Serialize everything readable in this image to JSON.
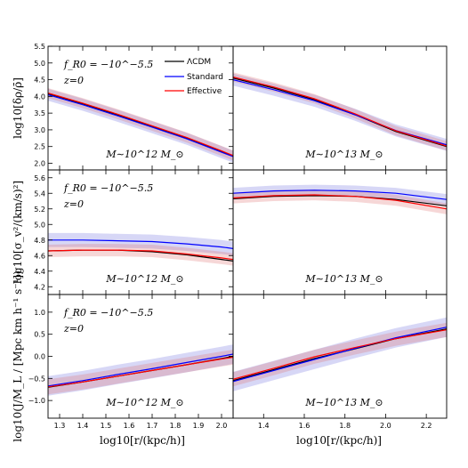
{
  "chart_data": {
    "type": "line",
    "legend": {
      "placement": "top-center",
      "entries": [
        {
          "label": "ΛCDM",
          "color": "#000000"
        },
        {
          "label": "Standard",
          "color": "#0000ff"
        },
        {
          "label": "Effective",
          "color": "#ff0000"
        }
      ]
    },
    "xlabel": "log10[r/(kpc/h)]",
    "colors": {
      "lcdm": "#000000",
      "standard": "#0000ff",
      "effective": "#ff0000",
      "band_std": "#6f6fe0",
      "band_eff": "#e07070"
    },
    "grid": false,
    "annotations": {
      "fr0": "f_R0 = −10^−5.5",
      "z": "z=0",
      "mass_left": "M∼10^12 M_⊙",
      "mass_right": "M∼10^13 M_⊙"
    },
    "panels": [
      {
        "id": "density",
        "column": 0,
        "row": 0,
        "ylabel": "log10[δρ/ρ̄]",
        "xlim": [
          1.25,
          2.05
        ],
        "ylim": [
          1.8,
          5.5
        ],
        "yticks": [
          "2.0",
          "2.5",
          "3.0",
          "3.5",
          "4.0",
          "4.5",
          "5.0",
          "5.5"
        ],
        "x": [
          1.25,
          1.4,
          1.55,
          1.7,
          1.85,
          2.0,
          2.05
        ],
        "lcdm": [
          4.08,
          3.78,
          3.45,
          3.1,
          2.75,
          2.35,
          2.22
        ],
        "standard": [
          4.05,
          3.75,
          3.42,
          3.08,
          2.73,
          2.33,
          2.2
        ],
        "effective": [
          4.1,
          3.8,
          3.47,
          3.12,
          2.77,
          2.37,
          2.23
        ],
        "band_std_halfwidth": 0.18,
        "band_eff_halfwidth": 0.15
      },
      {
        "id": "density",
        "column": 1,
        "row": 0,
        "xlim": [
          1.25,
          2.3
        ],
        "ylim": [
          1.8,
          5.5
        ],
        "x": [
          1.25,
          1.45,
          1.65,
          1.85,
          2.05,
          2.3
        ],
        "lcdm": [
          4.55,
          4.25,
          3.9,
          3.45,
          2.95,
          2.5
        ],
        "standard": [
          4.5,
          4.2,
          3.87,
          3.45,
          2.98,
          2.55
        ],
        "effective": [
          4.58,
          4.28,
          3.93,
          3.48,
          2.97,
          2.52
        ],
        "band_std_halfwidth": 0.18,
        "band_eff_halfwidth": 0.14
      },
      {
        "id": "sigma",
        "column": 0,
        "row": 1,
        "ylabel": "log10[σ_v²/(km/s)²]",
        "xlim": [
          1.25,
          2.05
        ],
        "ylim": [
          4.1,
          5.7
        ],
        "yticks": [
          "4.2",
          "4.4",
          "4.6",
          "4.8",
          "5.0",
          "5.2",
          "5.4",
          "5.6"
        ],
        "x": [
          1.25,
          1.4,
          1.55,
          1.7,
          1.85,
          2.0,
          2.05
        ],
        "lcdm": [
          4.66,
          4.67,
          4.67,
          4.65,
          4.61,
          4.55,
          4.53
        ],
        "standard": [
          4.8,
          4.8,
          4.79,
          4.78,
          4.75,
          4.71,
          4.69
        ],
        "effective": [
          4.66,
          4.67,
          4.67,
          4.66,
          4.62,
          4.57,
          4.55
        ],
        "band_std_halfwidth": 0.09,
        "band_eff_halfwidth": 0.08
      },
      {
        "id": "sigma",
        "column": 1,
        "row": 1,
        "xlim": [
          1.25,
          2.3
        ],
        "ylim": [
          4.1,
          5.7
        ],
        "x": [
          1.25,
          1.45,
          1.65,
          1.85,
          2.05,
          2.3
        ],
        "lcdm": [
          5.33,
          5.36,
          5.37,
          5.36,
          5.32,
          5.24
        ],
        "standard": [
          5.4,
          5.43,
          5.44,
          5.43,
          5.4,
          5.32
        ],
        "effective": [
          5.34,
          5.37,
          5.38,
          5.36,
          5.31,
          5.2
        ],
        "band_std_halfwidth": 0.07,
        "band_eff_halfwidth": 0.07
      },
      {
        "id": "angmom",
        "column": 0,
        "row": 2,
        "ylabel": "log10(J/M_L / [Mpc km h⁻¹ s⁻¹])",
        "xlim": [
          1.25,
          2.05
        ],
        "ylim": [
          -1.4,
          1.4
        ],
        "yticks": [
          "−1.0",
          "−0.5",
          "0.0",
          "0.5",
          "1.0"
        ],
        "xticks": [
          "1.3",
          "1.4",
          "1.5",
          "1.6",
          "1.7",
          "1.8",
          "1.9",
          "2.0"
        ],
        "x": [
          1.25,
          1.4,
          1.55,
          1.7,
          1.85,
          2.0,
          2.05
        ],
        "lcdm": [
          -0.7,
          -0.58,
          -0.45,
          -0.32,
          -0.19,
          -0.05,
          0.0
        ],
        "standard": [
          -0.67,
          -0.55,
          -0.41,
          -0.28,
          -0.14,
          0.0,
          0.05
        ],
        "effective": [
          -0.69,
          -0.58,
          -0.45,
          -0.32,
          -0.19,
          -0.06,
          -0.02
        ],
        "band_std_halfwidth": 0.22,
        "band_eff_halfwidth": 0.17
      },
      {
        "id": "angmom",
        "column": 1,
        "row": 2,
        "xlim": [
          1.25,
          2.3
        ],
        "ylim": [
          -1.4,
          1.4
        ],
        "xticks": [
          "1.4",
          "1.6",
          "1.8",
          "2.0",
          "2.2"
        ],
        "x": [
          1.25,
          1.45,
          1.65,
          1.85,
          2.05,
          2.3
        ],
        "lcdm": [
          -0.55,
          -0.3,
          -0.05,
          0.17,
          0.4,
          0.62
        ],
        "standard": [
          -0.57,
          -0.32,
          -0.07,
          0.18,
          0.42,
          0.66
        ],
        "effective": [
          -0.52,
          -0.27,
          -0.01,
          0.2,
          0.4,
          0.6
        ],
        "band_std_halfwidth": 0.22,
        "band_eff_halfwidth": 0.16
      }
    ]
  }
}
